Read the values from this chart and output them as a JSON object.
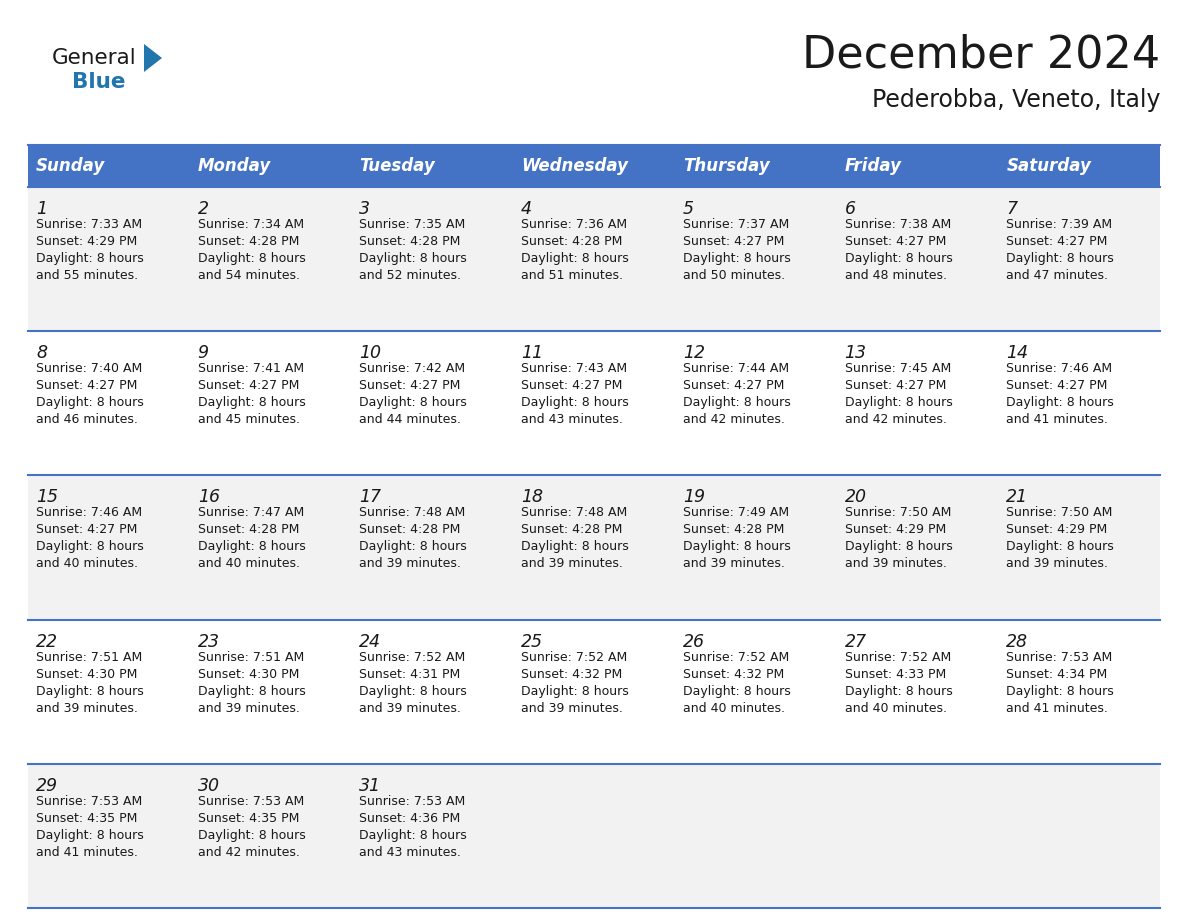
{
  "title": "December 2024",
  "subtitle": "Pederobba, Veneto, Italy",
  "header_bg": "#4472C4",
  "header_text": "#FFFFFF",
  "row_bg_light": "#F2F2F2",
  "row_bg_white": "#FFFFFF",
  "border_color": "#4472C4",
  "text_color": "#1a1a1a",
  "days_of_week": [
    "Sunday",
    "Monday",
    "Tuesday",
    "Wednesday",
    "Thursday",
    "Friday",
    "Saturday"
  ],
  "calendar_data": [
    [
      {
        "day": "1",
        "sunrise": "7:33 AM",
        "sunset": "4:29 PM",
        "dl1": "Daylight: 8 hours",
        "dl2": "and 55 minutes."
      },
      {
        "day": "2",
        "sunrise": "7:34 AM",
        "sunset": "4:28 PM",
        "dl1": "Daylight: 8 hours",
        "dl2": "and 54 minutes."
      },
      {
        "day": "3",
        "sunrise": "7:35 AM",
        "sunset": "4:28 PM",
        "dl1": "Daylight: 8 hours",
        "dl2": "and 52 minutes."
      },
      {
        "day": "4",
        "sunrise": "7:36 AM",
        "sunset": "4:28 PM",
        "dl1": "Daylight: 8 hours",
        "dl2": "and 51 minutes."
      },
      {
        "day": "5",
        "sunrise": "7:37 AM",
        "sunset": "4:27 PM",
        "dl1": "Daylight: 8 hours",
        "dl2": "and 50 minutes."
      },
      {
        "day": "6",
        "sunrise": "7:38 AM",
        "sunset": "4:27 PM",
        "dl1": "Daylight: 8 hours",
        "dl2": "and 48 minutes."
      },
      {
        "day": "7",
        "sunrise": "7:39 AM",
        "sunset": "4:27 PM",
        "dl1": "Daylight: 8 hours",
        "dl2": "and 47 minutes."
      }
    ],
    [
      {
        "day": "8",
        "sunrise": "7:40 AM",
        "sunset": "4:27 PM",
        "dl1": "Daylight: 8 hours",
        "dl2": "and 46 minutes."
      },
      {
        "day": "9",
        "sunrise": "7:41 AM",
        "sunset": "4:27 PM",
        "dl1": "Daylight: 8 hours",
        "dl2": "and 45 minutes."
      },
      {
        "day": "10",
        "sunrise": "7:42 AM",
        "sunset": "4:27 PM",
        "dl1": "Daylight: 8 hours",
        "dl2": "and 44 minutes."
      },
      {
        "day": "11",
        "sunrise": "7:43 AM",
        "sunset": "4:27 PM",
        "dl1": "Daylight: 8 hours",
        "dl2": "and 43 minutes."
      },
      {
        "day": "12",
        "sunrise": "7:44 AM",
        "sunset": "4:27 PM",
        "dl1": "Daylight: 8 hours",
        "dl2": "and 42 minutes."
      },
      {
        "day": "13",
        "sunrise": "7:45 AM",
        "sunset": "4:27 PM",
        "dl1": "Daylight: 8 hours",
        "dl2": "and 42 minutes."
      },
      {
        "day": "14",
        "sunrise": "7:46 AM",
        "sunset": "4:27 PM",
        "dl1": "Daylight: 8 hours",
        "dl2": "and 41 minutes."
      }
    ],
    [
      {
        "day": "15",
        "sunrise": "7:46 AM",
        "sunset": "4:27 PM",
        "dl1": "Daylight: 8 hours",
        "dl2": "and 40 minutes."
      },
      {
        "day": "16",
        "sunrise": "7:47 AM",
        "sunset": "4:28 PM",
        "dl1": "Daylight: 8 hours",
        "dl2": "and 40 minutes."
      },
      {
        "day": "17",
        "sunrise": "7:48 AM",
        "sunset": "4:28 PM",
        "dl1": "Daylight: 8 hours",
        "dl2": "and 39 minutes."
      },
      {
        "day": "18",
        "sunrise": "7:48 AM",
        "sunset": "4:28 PM",
        "dl1": "Daylight: 8 hours",
        "dl2": "and 39 minutes."
      },
      {
        "day": "19",
        "sunrise": "7:49 AM",
        "sunset": "4:28 PM",
        "dl1": "Daylight: 8 hours",
        "dl2": "and 39 minutes."
      },
      {
        "day": "20",
        "sunrise": "7:50 AM",
        "sunset": "4:29 PM",
        "dl1": "Daylight: 8 hours",
        "dl2": "and 39 minutes."
      },
      {
        "day": "21",
        "sunrise": "7:50 AM",
        "sunset": "4:29 PM",
        "dl1": "Daylight: 8 hours",
        "dl2": "and 39 minutes."
      }
    ],
    [
      {
        "day": "22",
        "sunrise": "7:51 AM",
        "sunset": "4:30 PM",
        "dl1": "Daylight: 8 hours",
        "dl2": "and 39 minutes."
      },
      {
        "day": "23",
        "sunrise": "7:51 AM",
        "sunset": "4:30 PM",
        "dl1": "Daylight: 8 hours",
        "dl2": "and 39 minutes."
      },
      {
        "day": "24",
        "sunrise": "7:52 AM",
        "sunset": "4:31 PM",
        "dl1": "Daylight: 8 hours",
        "dl2": "and 39 minutes."
      },
      {
        "day": "25",
        "sunrise": "7:52 AM",
        "sunset": "4:32 PM",
        "dl1": "Daylight: 8 hours",
        "dl2": "and 39 minutes."
      },
      {
        "day": "26",
        "sunrise": "7:52 AM",
        "sunset": "4:32 PM",
        "dl1": "Daylight: 8 hours",
        "dl2": "and 40 minutes."
      },
      {
        "day": "27",
        "sunrise": "7:52 AM",
        "sunset": "4:33 PM",
        "dl1": "Daylight: 8 hours",
        "dl2": "and 40 minutes."
      },
      {
        "day": "28",
        "sunrise": "7:53 AM",
        "sunset": "4:34 PM",
        "dl1": "Daylight: 8 hours",
        "dl2": "and 41 minutes."
      }
    ],
    [
      {
        "day": "29",
        "sunrise": "7:53 AM",
        "sunset": "4:35 PM",
        "dl1": "Daylight: 8 hours",
        "dl2": "and 41 minutes."
      },
      {
        "day": "30",
        "sunrise": "7:53 AM",
        "sunset": "4:35 PM",
        "dl1": "Daylight: 8 hours",
        "dl2": "and 42 minutes."
      },
      {
        "day": "31",
        "sunrise": "7:53 AM",
        "sunset": "4:36 PM",
        "dl1": "Daylight: 8 hours",
        "dl2": "and 43 minutes."
      },
      null,
      null,
      null,
      null
    ]
  ],
  "logo_general_color": "#1a1a1a",
  "logo_blue_color": "#2176AE",
  "logo_triangle_color": "#2176AE",
  "fig_width": 11.88,
  "fig_height": 9.18,
  "dpi": 100
}
